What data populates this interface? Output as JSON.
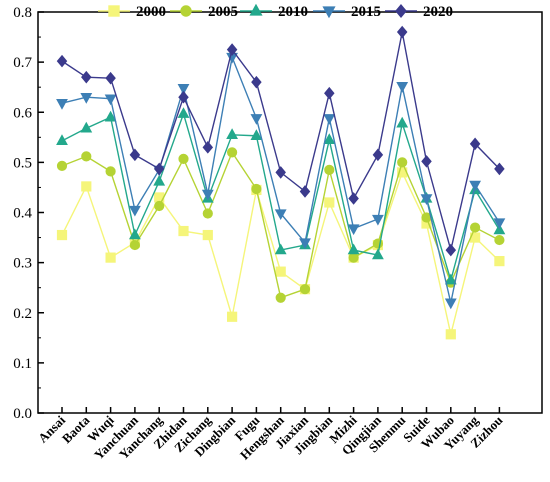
{
  "chart_data": {
    "type": "line",
    "title": "",
    "xlabel": "",
    "ylabel": "",
    "ylim": [
      0.0,
      0.8
    ],
    "y_ticks": [
      "0.0",
      "0.1",
      "0.2",
      "0.3",
      "0.4",
      "0.5",
      "0.6",
      "0.7",
      "0.8"
    ],
    "legend_position": "top",
    "grid": false,
    "categories": [
      "Ansai",
      "Baota",
      "Wuqi",
      "Yanchuan",
      "Yanchang",
      "Zhidan",
      "Zichang",
      "Dingbian",
      "Fugu",
      "Hengshan",
      "Jiaxian",
      "Jingbian",
      "Mizhi",
      "Qingjian",
      "Shenmu",
      "Suide",
      "Wubao",
      "Yuyang",
      "Zizhou"
    ],
    "series": [
      {
        "name": "2000",
        "color": "#f5f57a",
        "marker": "square",
        "values": [
          0.355,
          0.452,
          0.31,
          0.34,
          0.43,
          0.363,
          0.355,
          0.192,
          0.445,
          0.282,
          0.247,
          0.42,
          0.31,
          0.335,
          0.48,
          0.378,
          0.157,
          0.35,
          0.303
        ]
      },
      {
        "name": "2005",
        "color": "#b5d334",
        "marker": "circle",
        "values": [
          0.493,
          0.512,
          0.482,
          0.335,
          0.413,
          0.507,
          0.398,
          0.52,
          0.447,
          0.23,
          0.247,
          0.485,
          0.31,
          0.338,
          0.5,
          0.39,
          0.26,
          0.37,
          0.345
        ]
      },
      {
        "name": "2010",
        "color": "#23a88c",
        "marker": "triangle-up",
        "values": [
          0.543,
          0.568,
          0.59,
          0.355,
          0.462,
          0.597,
          0.428,
          0.555,
          0.553,
          0.325,
          0.335,
          0.545,
          0.325,
          0.315,
          0.578,
          0.428,
          0.265,
          0.445,
          0.365
        ]
      },
      {
        "name": "2015",
        "color": "#3d7fb5",
        "marker": "triangle-down",
        "values": [
          0.618,
          0.63,
          0.627,
          0.405,
          0.485,
          0.648,
          0.437,
          0.71,
          0.588,
          0.398,
          0.34,
          0.588,
          0.368,
          0.387,
          0.652,
          0.428,
          0.22,
          0.455,
          0.38
        ]
      },
      {
        "name": "2020",
        "color": "#3b3a8c",
        "marker": "diamond",
        "values": [
          0.702,
          0.67,
          0.668,
          0.515,
          0.487,
          0.63,
          0.53,
          0.725,
          0.66,
          0.48,
          0.442,
          0.638,
          0.428,
          0.515,
          0.76,
          0.502,
          0.325,
          0.537,
          0.487
        ]
      }
    ]
  }
}
